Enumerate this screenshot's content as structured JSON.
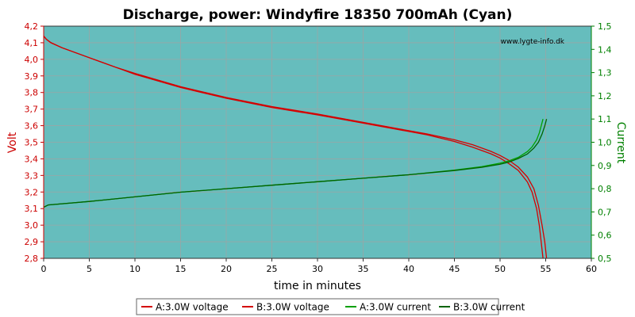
{
  "chart_data": {
    "type": "line",
    "title": "Discharge, power: Windyfire 18350 700mAh (Cyan)",
    "watermark": "www.lygte-info.dk",
    "xlabel": "time in minutes",
    "ylabel_left": "Volt",
    "ylabel_right": "Current",
    "xlim": [
      0,
      60
    ],
    "ylim_left": [
      2.8,
      4.2
    ],
    "ylim_right": [
      0.5,
      1.5
    ],
    "x_ticks": [
      "0",
      "5",
      "10",
      "15",
      "20",
      "25",
      "30",
      "35",
      "40",
      "45",
      "50",
      "55",
      "60"
    ],
    "y_left_ticks": [
      "2,8",
      "2,9",
      "3,0",
      "3,1",
      "3,2",
      "3,3",
      "3,4",
      "3,5",
      "3,6",
      "3,7",
      "3,8",
      "3,9",
      "4,0",
      "4,1",
      "4,2"
    ],
    "y_right_ticks": [
      "0,5",
      "0,6",
      "0,7",
      "0,8",
      "0,9",
      "1,0",
      "1,1",
      "1,2",
      "1,3",
      "1,4",
      "1,5"
    ],
    "grid": true,
    "legend_position": "bottom",
    "colors": {
      "plot_bg": "#66bdbd",
      "grid": "#9aa6a6",
      "voltage_axis": "#cc0000",
      "current_axis": "#008000",
      "voltage_series": "#d40000",
      "current_a_series": "#00a000",
      "current_b_series": "#006400"
    },
    "series": [
      {
        "name": "A:3.0W voltage",
        "axis": "left",
        "color": "#d40000",
        "points": [
          [
            0,
            4.14
          ],
          [
            0.3,
            4.12
          ],
          [
            0.8,
            4.1
          ],
          [
            2,
            4.07
          ],
          [
            5,
            4.01
          ],
          [
            8,
            3.95
          ],
          [
            10,
            3.91
          ],
          [
            15,
            3.83
          ],
          [
            20,
            3.765
          ],
          [
            25,
            3.71
          ],
          [
            30,
            3.665
          ],
          [
            35,
            3.615
          ],
          [
            40,
            3.565
          ],
          [
            42,
            3.545
          ],
          [
            45,
            3.505
          ],
          [
            47,
            3.47
          ],
          [
            49,
            3.43
          ],
          [
            50,
            3.405
          ],
          [
            51,
            3.37
          ],
          [
            52,
            3.33
          ],
          [
            53,
            3.26
          ],
          [
            53.5,
            3.2
          ],
          [
            54,
            3.1
          ],
          [
            54.3,
            3.0
          ],
          [
            54.5,
            2.9
          ],
          [
            54.7,
            2.8
          ]
        ]
      },
      {
        "name": "B:3.0W voltage",
        "axis": "left",
        "color": "#d40000",
        "points": [
          [
            0,
            4.14
          ],
          [
            0.3,
            4.12
          ],
          [
            0.8,
            4.1
          ],
          [
            2,
            4.07
          ],
          [
            5,
            4.01
          ],
          [
            8,
            3.95
          ],
          [
            10,
            3.915
          ],
          [
            15,
            3.835
          ],
          [
            20,
            3.77
          ],
          [
            25,
            3.715
          ],
          [
            30,
            3.67
          ],
          [
            35,
            3.62
          ],
          [
            40,
            3.57
          ],
          [
            42,
            3.55
          ],
          [
            45,
            3.515
          ],
          [
            47,
            3.485
          ],
          [
            49,
            3.445
          ],
          [
            50,
            3.42
          ],
          [
            51,
            3.39
          ],
          [
            52,
            3.35
          ],
          [
            53,
            3.29
          ],
          [
            53.7,
            3.22
          ],
          [
            54.2,
            3.12
          ],
          [
            54.6,
            3.0
          ],
          [
            54.9,
            2.9
          ],
          [
            55.1,
            2.8
          ]
        ]
      },
      {
        "name": "A:3.0W current",
        "axis": "right",
        "color": "#00a000",
        "points": [
          [
            0,
            0.72
          ],
          [
            0.5,
            0.73
          ],
          [
            5,
            0.745
          ],
          [
            10,
            0.765
          ],
          [
            15,
            0.785
          ],
          [
            20,
            0.8
          ],
          [
            25,
            0.815
          ],
          [
            30,
            0.83
          ],
          [
            35,
            0.845
          ],
          [
            40,
            0.86
          ],
          [
            45,
            0.88
          ],
          [
            48,
            0.895
          ],
          [
            50,
            0.91
          ],
          [
            51,
            0.92
          ],
          [
            52,
            0.935
          ],
          [
            53,
            0.96
          ],
          [
            53.5,
            0.98
          ],
          [
            54,
            1.01
          ],
          [
            54.3,
            1.04
          ],
          [
            54.5,
            1.07
          ],
          [
            54.7,
            1.1
          ]
        ]
      },
      {
        "name": "B:3.0W current",
        "axis": "right",
        "color": "#006400",
        "points": [
          [
            0,
            0.72
          ],
          [
            0.5,
            0.73
          ],
          [
            5,
            0.745
          ],
          [
            10,
            0.765
          ],
          [
            15,
            0.785
          ],
          [
            20,
            0.8
          ],
          [
            25,
            0.815
          ],
          [
            30,
            0.83
          ],
          [
            35,
            0.845
          ],
          [
            40,
            0.86
          ],
          [
            45,
            0.878
          ],
          [
            48,
            0.892
          ],
          [
            50,
            0.905
          ],
          [
            51,
            0.915
          ],
          [
            52,
            0.93
          ],
          [
            53,
            0.95
          ],
          [
            53.7,
            0.975
          ],
          [
            54.2,
            1.0
          ],
          [
            54.6,
            1.035
          ],
          [
            54.9,
            1.07
          ],
          [
            55.1,
            1.1
          ]
        ]
      }
    ]
  }
}
